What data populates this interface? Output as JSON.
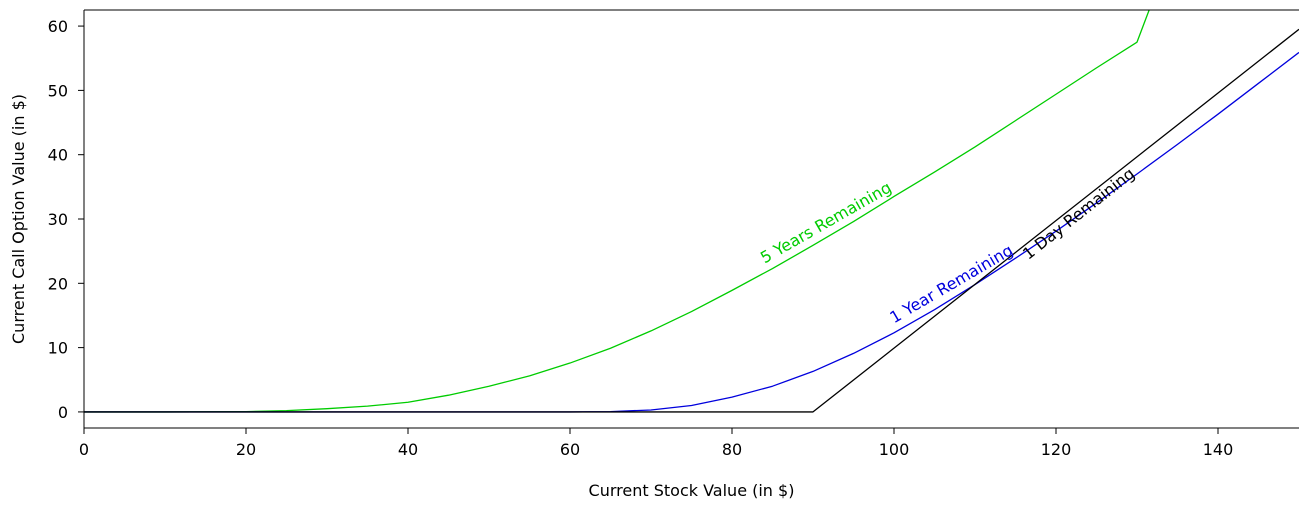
{
  "chart_data": {
    "type": "line",
    "xlabel": "Current Stock Value (in $)",
    "ylabel": "Current Call Option Value (in $)",
    "xlim": [
      0,
      150
    ],
    "ylim": [
      -2.5,
      62.5
    ],
    "xticks": [
      "0",
      "20",
      "40",
      "60",
      "80",
      "100",
      "120",
      "140"
    ],
    "yticks": [
      "0",
      "10",
      "20",
      "30",
      "40",
      "50",
      "60"
    ],
    "grid": false,
    "series": [
      {
        "name": "5 Years Remaining",
        "color": "#00cc00",
        "label_at_x": 84.5,
        "x": [
          0,
          10,
          20,
          25,
          30,
          35,
          40,
          45,
          50,
          55,
          60,
          65,
          70,
          75,
          80,
          85,
          90,
          95,
          100,
          105,
          110,
          115,
          120,
          125,
          130,
          131.5
        ],
        "y": [
          0,
          0,
          0.05,
          0.2,
          0.5,
          0.9,
          1.5,
          2.6,
          4.0,
          5.6,
          7.6,
          9.9,
          12.6,
          15.6,
          18.9,
          22.3,
          25.9,
          29.6,
          33.5,
          37.3,
          41.2,
          45.3,
          49.4,
          53.5,
          57.5,
          62.5
        ]
      },
      {
        "name": "1 Year Remaining",
        "color": "#0000dd",
        "label_at_x": 100.5,
        "x": [
          0,
          20,
          40,
          60,
          65,
          70,
          75,
          80,
          85,
          90,
          95,
          100,
          105,
          110,
          115,
          120,
          125,
          130,
          135,
          140,
          145,
          150
        ],
        "y": [
          0,
          0,
          0,
          0,
          0.05,
          0.3,
          1.0,
          2.3,
          4.0,
          6.3,
          9.1,
          12.3,
          15.9,
          19.8,
          23.9,
          28.1,
          32.5,
          37.0,
          41.6,
          46.3,
          51.1,
          55.9
        ]
      },
      {
        "name": "1 Day Remaining",
        "color": "#000000",
        "label_at_x": 115.5,
        "x": [
          0,
          90,
          150
        ],
        "y": [
          0,
          0,
          59.5
        ]
      }
    ]
  }
}
